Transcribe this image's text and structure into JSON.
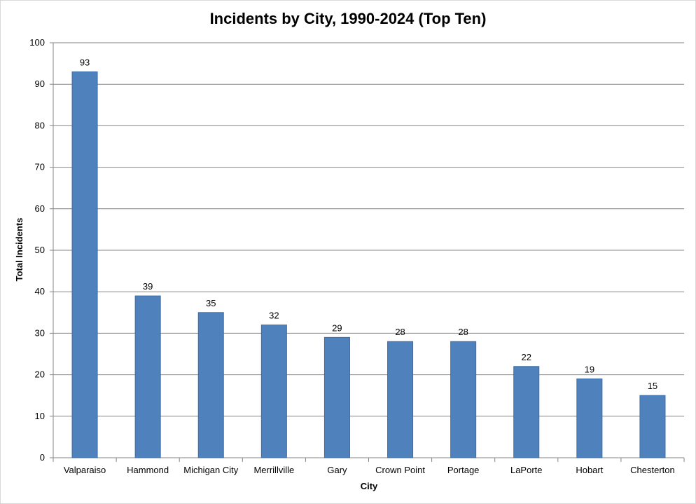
{
  "chart_data": {
    "type": "bar",
    "title": "Incidents by City, 1990-2024 (Top Ten)",
    "xlabel": "City",
    "ylabel": "Total Incidents",
    "categories": [
      "Valparaiso",
      "Hammond",
      "Michigan City",
      "Merrillville",
      "Gary",
      "Crown Point",
      "Portage",
      "LaPorte",
      "Hobart",
      "Chesterton"
    ],
    "values": [
      93,
      39,
      35,
      32,
      29,
      28,
      28,
      22,
      19,
      15
    ],
    "ylim": [
      0,
      100
    ],
    "yticks": [
      0,
      10,
      20,
      30,
      40,
      50,
      60,
      70,
      80,
      90,
      100
    ],
    "data_labels": true,
    "grid": true,
    "legend": "none",
    "colors": {
      "bar": "#4f81bd",
      "bar_border": "#3b6da8",
      "grid": "#868686",
      "axis": "#868686",
      "text": "#000000"
    }
  }
}
